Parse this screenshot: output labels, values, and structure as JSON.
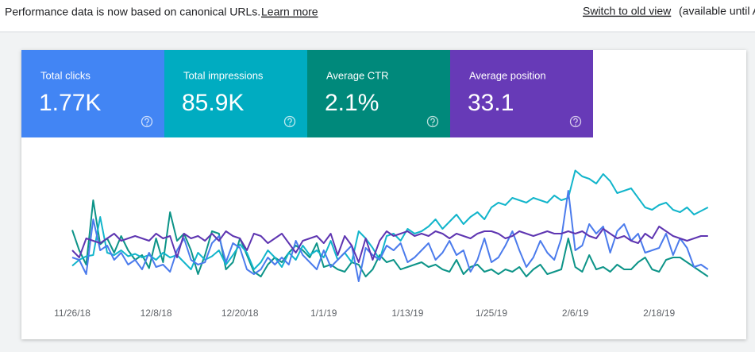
{
  "header": {
    "notice": "Performance data is now based on canonical URLs.",
    "link": "Learn more",
    "switch": "Switch to old view",
    "available": "(available until A"
  },
  "metrics": [
    {
      "value": "1.77K"
    },
    {
      "value": "85.9K"
    },
    {
      "value": "2.1%"
    },
    {
      "value": "33.1"
    }
  ],
  "chart_data": {
    "type": "line",
    "categories": [
      "11/26/18",
      null,
      null,
      null,
      null,
      null,
      null,
      null,
      null,
      null,
      null,
      null,
      "12/8/18",
      null,
      null,
      null,
      null,
      null,
      null,
      null,
      null,
      null,
      null,
      null,
      "12/20/18",
      null,
      null,
      null,
      null,
      null,
      null,
      null,
      null,
      null,
      null,
      null,
      "1/1/19",
      null,
      null,
      null,
      null,
      null,
      null,
      null,
      null,
      null,
      null,
      null,
      "1/13/19",
      null,
      null,
      null,
      null,
      null,
      null,
      null,
      null,
      null,
      null,
      null,
      "1/25/19",
      null,
      null,
      null,
      null,
      null,
      null,
      null,
      null,
      null,
      null,
      null,
      "2/6/19",
      null,
      null,
      null,
      null,
      null,
      null,
      null,
      null,
      null,
      null,
      null,
      "2/18/19",
      null,
      null,
      null,
      null,
      null,
      null,
      null
    ],
    "ylim": [
      0,
      100
    ],
    "series": [
      {
        "name": "Total clicks",
        "color": "#0d9488",
        "tile": "#4285f4",
        "values": [
          47,
          30,
          18,
          72,
          35,
          40,
          28,
          42,
          30,
          22,
          26,
          15,
          40,
          20,
          62,
          38,
          44,
          30,
          10,
          26,
          46,
          44,
          14,
          20,
          40,
          26,
          12,
          8,
          18,
          24,
          20,
          28,
          34,
          30,
          24,
          36,
          16,
          18,
          14,
          12,
          20,
          18,
          8,
          14,
          26,
          20,
          22,
          14,
          16,
          18,
          20,
          16,
          18,
          14,
          12,
          22,
          10,
          16,
          18,
          12,
          14,
          10,
          14,
          12,
          16,
          8,
          14,
          18,
          10,
          12,
          14,
          40,
          16,
          12,
          26,
          14,
          16,
          12,
          18,
          14,
          14,
          20,
          24,
          14,
          12,
          22,
          24,
          24,
          20,
          16,
          12,
          8
        ]
      },
      {
        "name": "Total impressions",
        "color": "#12b5cb",
        "tile": "#00acc1",
        "values": [
          17,
          22,
          25,
          26,
          58,
          28,
          26,
          30,
          25,
          27,
          24,
          26,
          22,
          28,
          24,
          26,
          20,
          14,
          28,
          22,
          25,
          30,
          18,
          26,
          35,
          28,
          14,
          20,
          30,
          24,
          16,
          28,
          22,
          34,
          26,
          30,
          24,
          38,
          22,
          28,
          20,
          46,
          40,
          32,
          22,
          42,
          44,
          38,
          48,
          44,
          46,
          50,
          56,
          48,
          54,
          60,
          52,
          58,
          62,
          56,
          66,
          70,
          68,
          74,
          72,
          70,
          74,
          72,
          70,
          76,
          72,
          74,
          97,
          92,
          90,
          86,
          94,
          88,
          78,
          80,
          82,
          74,
          66,
          64,
          68,
          70,
          64,
          62,
          66,
          60,
          63,
          66
        ]
      },
      {
        "name": "Average CTR",
        "color": "#4b7bec",
        "tile": "#00897b",
        "values": [
          24,
          22,
          10,
          56,
          30,
          34,
          22,
          28,
          18,
          22,
          14,
          28,
          16,
          18,
          12,
          30,
          40,
          22,
          18,
          20,
          36,
          42,
          20,
          36,
          32,
          14,
          10,
          14,
          24,
          18,
          24,
          18,
          38,
          26,
          20,
          14,
          30,
          16,
          22,
          28,
          34,
          4,
          32,
          26,
          22,
          34,
          30,
          36,
          20,
          24,
          30,
          36,
          22,
          28,
          38,
          26,
          30,
          12,
          22,
          40,
          20,
          24,
          34,
          46,
          30,
          16,
          24,
          38,
          28,
          22,
          40,
          80,
          30,
          34,
          52,
          44,
          50,
          28,
          46,
          52,
          38,
          44,
          28,
          30,
          32,
          44,
          26,
          40,
          32,
          16,
          18,
          14
        ]
      },
      {
        "name": "Average position",
        "color": "#5e35b1",
        "tile": "#673ab7",
        "values": [
          30,
          24,
          40,
          38,
          36,
          40,
          44,
          38,
          40,
          42,
          40,
          38,
          44,
          40,
          42,
          24,
          44,
          40,
          42,
          38,
          44,
          38,
          46,
          42,
          40,
          30,
          44,
          42,
          36,
          40,
          44,
          36,
          28,
          38,
          40,
          42,
          36,
          44,
          26,
          42,
          34,
          20,
          40,
          22,
          38,
          46,
          42,
          44,
          46,
          42,
          44,
          42,
          46,
          44,
          40,
          44,
          42,
          40,
          44,
          46,
          46,
          44,
          40,
          42,
          46,
          44,
          42,
          44,
          46,
          44,
          44,
          46,
          44,
          46,
          42,
          40,
          48,
          44,
          40,
          42,
          38,
          36,
          44,
          40,
          50,
          46,
          42,
          40,
          38,
          40,
          42,
          42
        ]
      }
    ]
  }
}
